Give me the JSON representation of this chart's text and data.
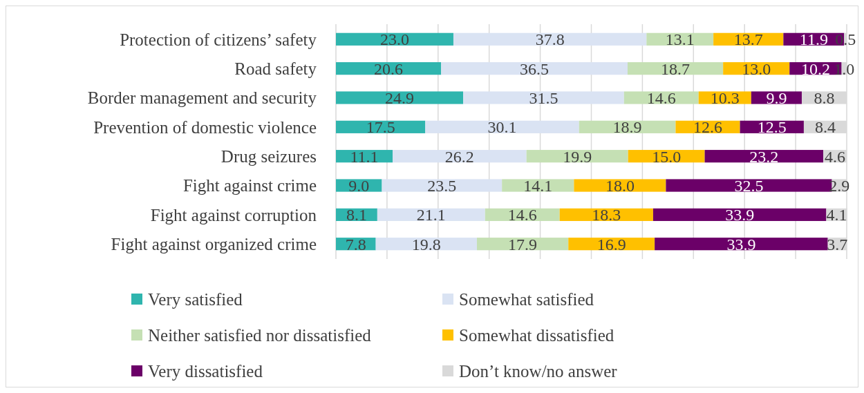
{
  "chart_data": {
    "type": "bar",
    "orientation": "horizontal",
    "stacked": true,
    "grid": "x",
    "tick_labels": "y",
    "legend": "bottom",
    "categories": [
      "Protection of citizens’ safety",
      "Road safety",
      "Border management and security",
      "Prevention of domestic violence",
      "Drug seizures",
      "Fight against crime",
      "Fight against corruption",
      "Fight against organized crime"
    ],
    "xlim": [
      0,
      100
    ],
    "xticks": [
      {
        "value": 0,
        "label": null
      },
      {
        "value": 10,
        "label": null
      },
      {
        "value": 20,
        "label": null
      },
      {
        "value": 30,
        "label": null
      },
      {
        "value": 40,
        "label": null
      },
      {
        "value": 50,
        "label": null
      },
      {
        "value": 60,
        "label": null
      },
      {
        "value": 70,
        "label": null
      },
      {
        "value": 80,
        "label": null
      },
      {
        "value": 90,
        "label": null
      },
      {
        "value": 100,
        "label": null
      }
    ],
    "series": [
      {
        "name": "Very satisfied",
        "color": "#2fb5ae",
        "values": [
          23.0,
          20.6,
          24.9,
          17.5,
          11.1,
          9.0,
          8.1,
          7.8
        ],
        "value_labels": [
          "23.0",
          "20.6",
          "24.9",
          "17.5",
          "11.1",
          "9.0",
          "8.1",
          "7.8"
        ]
      },
      {
        "name": "Somewhat satisfied",
        "color": "#dae3f3",
        "values": [
          37.8,
          36.5,
          31.5,
          30.1,
          26.2,
          23.5,
          21.1,
          19.8
        ],
        "value_labels": [
          "37.8",
          "36.5",
          "31.5",
          "30.1",
          "26.2",
          "23.5",
          "21.1",
          "19.8"
        ]
      },
      {
        "name": "Neither satisfied nor dissatisfied",
        "color": "#c5e0b4",
        "values": [
          13.1,
          18.7,
          14.6,
          18.9,
          19.9,
          14.1,
          14.6,
          17.9
        ],
        "value_labels": [
          "13.1",
          "18.7",
          "14.6",
          "18.9",
          "19.9",
          "14.1",
          "14.6",
          "17.9"
        ]
      },
      {
        "name": "Somewhat dissatisfied",
        "color": "#ffc000",
        "values": [
          13.7,
          13.0,
          10.3,
          12.6,
          15.0,
          18.0,
          18.3,
          16.9
        ],
        "value_labels": [
          "13.7",
          "13.0",
          "10.3",
          "12.6",
          "15.0",
          "18.0",
          "18.3",
          "16.9"
        ]
      },
      {
        "name": "Very dissatisfied",
        "color": "#6b0068",
        "values": [
          11.9,
          10.2,
          9.9,
          12.5,
          23.2,
          32.5,
          33.9,
          33.9
        ],
        "value_labels": [
          "11.9",
          "10.2",
          "9.9",
          "12.5",
          "23.2",
          "32.5",
          "33.9",
          "33.9"
        ]
      },
      {
        "name": "Don’t know/no answer",
        "color": "#d9d9d9",
        "values": [
          0.5,
          1.0,
          8.8,
          8.4,
          4.6,
          2.9,
          4.1,
          3.7
        ],
        "value_labels": [
          "0.5",
          "1.0",
          "8.8",
          "8.4",
          "4.6",
          "2.9",
          "4.1",
          "3.7"
        ]
      }
    ]
  }
}
